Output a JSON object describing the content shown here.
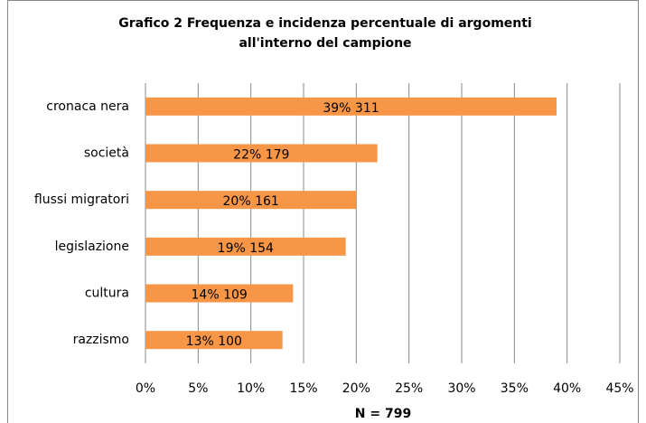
{
  "chart_data": {
    "type": "bar",
    "orientation": "horizontal",
    "title": "Grafico 2 Frequenza e incidenza percentuale di argomenti",
    "subtitle": "all'interno del campione",
    "x_label": "N = 799",
    "categories": [
      "cronaca nera",
      "società",
      "flussi migratori",
      "legislazione",
      "cultura",
      "razzismo"
    ],
    "values": [
      39,
      22,
      20,
      19,
      14,
      13
    ],
    "value_labels": [
      "39% 311",
      "22% 179",
      "20% 161",
      "19% 154",
      "14% 109",
      "13% 100"
    ],
    "color": "#f79646",
    "xlim": [
      0,
      45
    ],
    "xticks": [
      {
        "value": 0,
        "label": "0%"
      },
      {
        "value": 5,
        "label": "5%"
      },
      {
        "value": 10,
        "label": "10%"
      },
      {
        "value": 15,
        "label": "15%"
      },
      {
        "value": 20,
        "label": "20%"
      },
      {
        "value": 25,
        "label": "25%"
      },
      {
        "value": 30,
        "label": "30%"
      },
      {
        "value": 35,
        "label": "35%"
      },
      {
        "value": 40,
        "label": "40%"
      },
      {
        "value": 45,
        "label": "45%"
      }
    ],
    "grid": true
  }
}
